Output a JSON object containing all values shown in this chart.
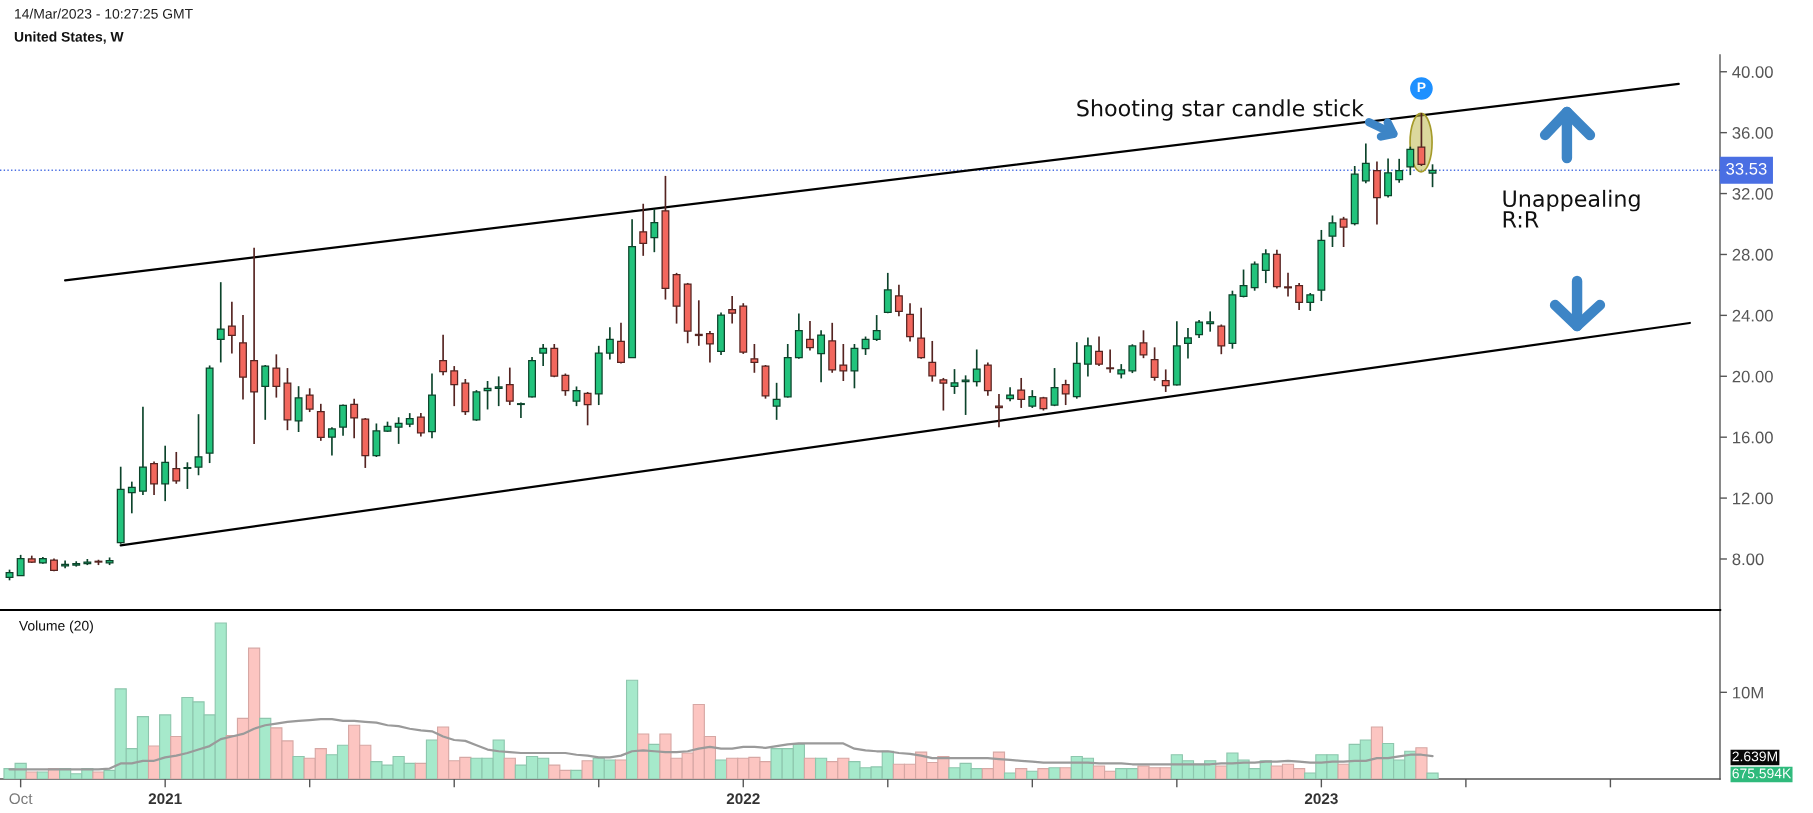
{
  "chart_data": [
    {
      "type": "candlestick",
      "title": "United States, W",
      "annotations": [
        "14/Mar/2023 - 10:27:25 GMT",
        "Unappealing\nR:R",
        "Shooting star candle stick",
        {
          "text": "P",
          "x": "2023-03-06",
          "y": 38.9
        }
      ],
      "x": [
        "2020-09-28",
        "2020-10-05",
        "2020-10-12",
        "2020-10-19",
        "2020-10-26",
        "2020-11-02",
        "2020-11-09",
        "2020-11-16",
        "2020-11-23",
        "2020-11-30",
        "2020-12-07",
        "2020-12-14",
        "2020-12-21",
        "2020-12-28",
        "2021-01-04",
        "2021-01-11",
        "2021-01-18",
        "2021-01-25",
        "2021-02-01",
        "2021-02-08",
        "2021-02-15",
        "2021-02-22",
        "2021-03-01",
        "2021-03-08",
        "2021-03-15",
        "2021-03-22",
        "2021-03-29",
        "2021-04-05",
        "2021-04-12",
        "2021-04-19",
        "2021-04-26",
        "2021-05-03",
        "2021-05-10",
        "2021-05-17",
        "2021-05-24",
        "2021-05-31",
        "2021-06-07",
        "2021-06-14",
        "2021-06-21",
        "2021-06-28",
        "2021-07-05",
        "2021-07-12",
        "2021-07-19",
        "2021-07-26",
        "2021-08-02",
        "2021-08-09",
        "2021-08-16",
        "2021-08-23",
        "2021-08-30",
        "2021-09-06",
        "2021-09-13",
        "2021-09-20",
        "2021-09-27",
        "2021-10-04",
        "2021-10-11",
        "2021-10-18",
        "2021-10-25",
        "2021-11-01",
        "2021-11-08",
        "2021-11-15",
        "2021-11-22",
        "2021-11-29",
        "2021-12-06",
        "2021-12-13",
        "2021-12-20",
        "2021-12-27",
        "2022-01-03",
        "2022-01-10",
        "2022-01-17",
        "2022-01-24",
        "2022-01-31",
        "2022-02-07",
        "2022-02-14",
        "2022-02-21",
        "2022-02-28",
        "2022-03-07",
        "2022-03-14",
        "2022-03-21",
        "2022-03-28",
        "2022-04-04",
        "2022-04-11",
        "2022-04-18",
        "2022-04-25",
        "2022-05-02",
        "2022-05-09",
        "2022-05-16",
        "2022-05-23",
        "2022-05-30",
        "2022-06-06",
        "2022-06-13",
        "2022-06-20",
        "2022-06-27",
        "2022-07-04",
        "2022-07-11",
        "2022-07-18",
        "2022-07-25",
        "2022-08-01",
        "2022-08-08",
        "2022-08-15",
        "2022-08-22",
        "2022-08-29",
        "2022-09-05",
        "2022-09-12",
        "2022-09-19",
        "2022-09-26",
        "2022-10-03",
        "2022-10-10",
        "2022-10-17",
        "2022-10-24",
        "2022-10-31",
        "2022-11-07",
        "2022-11-14",
        "2022-11-21",
        "2022-11-28",
        "2022-12-05",
        "2022-12-12",
        "2022-12-19",
        "2022-12-26",
        "2023-01-02",
        "2023-01-09",
        "2023-01-16",
        "2023-01-23",
        "2023-01-30",
        "2023-02-06",
        "2023-02-13",
        "2023-02-20",
        "2023-02-27",
        "2023-03-06",
        "2023-03-13"
      ],
      "ohlc": [
        [
          6.8,
          7.3,
          6.6,
          7.1
        ],
        [
          6.9,
          8.27,
          6.89,
          8.03
        ],
        [
          8.0,
          8.22,
          7.74,
          7.79
        ],
        [
          7.74,
          8.13,
          7.69,
          8.03
        ],
        [
          7.93,
          8.03,
          7.2,
          7.25
        ],
        [
          7.55,
          7.9,
          7.4,
          7.65
        ],
        [
          7.6,
          7.85,
          7.5,
          7.7
        ],
        [
          7.7,
          8.0,
          7.6,
          7.8
        ],
        [
          7.85,
          7.95,
          7.6,
          7.8
        ],
        [
          7.75,
          8.1,
          7.6,
          7.9
        ],
        [
          9.08,
          14.06,
          9.0,
          12.57
        ],
        [
          12.36,
          13.08,
          11.0,
          12.7
        ],
        [
          12.45,
          18.0,
          12.21,
          14.03
        ],
        [
          14.27,
          14.4,
          12.2,
          12.94
        ],
        [
          12.94,
          15.44,
          11.8,
          14.35
        ],
        [
          13.93,
          15.03,
          12.94,
          13.13
        ],
        [
          13.95,
          14.35,
          12.6,
          14.0
        ],
        [
          14.03,
          17.51,
          13.5,
          14.71
        ],
        [
          14.95,
          20.71,
          14.3,
          20.54
        ],
        [
          22.42,
          26.18,
          20.91,
          23.1
        ],
        [
          23.29,
          24.89,
          21.49,
          22.68
        ],
        [
          22.2,
          24.02,
          18.48,
          19.94
        ],
        [
          21.03,
          28.44,
          15.56,
          18.97
        ],
        [
          19.33,
          20.74,
          17.14,
          20.67
        ],
        [
          20.54,
          21.44,
          18.6,
          19.33
        ],
        [
          19.55,
          20.54,
          16.46,
          17.14
        ],
        [
          17.07,
          19.35,
          16.34,
          18.58
        ],
        [
          18.77,
          19.21,
          17.65,
          17.85
        ],
        [
          17.68,
          18.19,
          15.76,
          15.98
        ],
        [
          16.0,
          16.66,
          14.79,
          16.54
        ],
        [
          16.66,
          18.14,
          16.1,
          18.09
        ],
        [
          18.16,
          18.53,
          15.93,
          17.26
        ],
        [
          17.19,
          17.26,
          13.98,
          14.79
        ],
        [
          14.79,
          16.9,
          14.7,
          16.41
        ],
        [
          16.39,
          17.02,
          16.34,
          16.71
        ],
        [
          16.66,
          17.31,
          15.56,
          16.9
        ],
        [
          16.85,
          17.58,
          16.66,
          17.22
        ],
        [
          17.31,
          17.58,
          16.05,
          16.29
        ],
        [
          16.37,
          20.18,
          15.93,
          18.77
        ],
        [
          21.03,
          22.73,
          20.06,
          20.3
        ],
        [
          20.35,
          20.67,
          18.04,
          19.45
        ],
        [
          19.55,
          19.82,
          17.46,
          17.68
        ],
        [
          17.14,
          19.09,
          17.07,
          18.97
        ],
        [
          19.06,
          19.69,
          17.82,
          19.21
        ],
        [
          19.2,
          19.99,
          18.04,
          19.3
        ],
        [
          19.45,
          20.57,
          18.11,
          18.36
        ],
        [
          18.15,
          18.28,
          17.26,
          18.2
        ],
        [
          18.65,
          21.27,
          18.6,
          21.03
        ],
        [
          21.52,
          22.12,
          20.67,
          21.83
        ],
        [
          21.83,
          22.12,
          19.94,
          20.01
        ],
        [
          20.06,
          20.18,
          18.72,
          19.06
        ],
        [
          18.36,
          19.33,
          18.04,
          19.06
        ],
        [
          18.87,
          18.97,
          16.78,
          18.14
        ],
        [
          18.84,
          22.0,
          18.11,
          21.52
        ],
        [
          21.52,
          23.22,
          21.1,
          22.42
        ],
        [
          22.29,
          23.51,
          20.84,
          20.91
        ],
        [
          21.22,
          30.31,
          21.2,
          28.52
        ],
        [
          29.49,
          31.33,
          27.91,
          28.73
        ],
        [
          29.1,
          30.99,
          28.15,
          30.09
        ],
        [
          30.87,
          33.16,
          25.04,
          25.77
        ],
        [
          26.67,
          26.79,
          23.46,
          24.6
        ],
        [
          26.06,
          26.13,
          22.17,
          22.97
        ],
        [
          22.75,
          24.99,
          22.0,
          22.68
        ],
        [
          22.8,
          22.97,
          20.91,
          22.12
        ],
        [
          21.64,
          24.19,
          21.4,
          24.02
        ],
        [
          24.38,
          25.28,
          23.46,
          24.14
        ],
        [
          24.6,
          24.8,
          21.47,
          21.59
        ],
        [
          21.15,
          22.12,
          20.23,
          20.91
        ],
        [
          20.67,
          20.74,
          18.53,
          18.72
        ],
        [
          18.04,
          19.57,
          17.14,
          18.48
        ],
        [
          18.65,
          22.12,
          18.6,
          21.22
        ],
        [
          21.22,
          24.12,
          21.15,
          23.0
        ],
        [
          22.42,
          23.63,
          21.69,
          21.88
        ],
        [
          21.49,
          23.02,
          19.6,
          22.71
        ],
        [
          22.32,
          23.51,
          20.23,
          20.42
        ],
        [
          20.74,
          22.12,
          19.69,
          20.35
        ],
        [
          20.35,
          22.12,
          19.21,
          21.83
        ],
        [
          21.81,
          22.61,
          21.4,
          22.42
        ],
        [
          22.42,
          24.02,
          22.32,
          23.0
        ],
        [
          24.19,
          26.79,
          24.14,
          25.67
        ],
        [
          25.28,
          26.01,
          23.95,
          24.26
        ],
        [
          24.07,
          24.8,
          22.29,
          22.61
        ],
        [
          22.51,
          24.5,
          21.15,
          21.22
        ],
        [
          20.91,
          22.32,
          19.65,
          20.03
        ],
        [
          19.77,
          19.89,
          17.75,
          19.55
        ],
        [
          19.33,
          20.47,
          18.84,
          19.57
        ],
        [
          19.65,
          20.06,
          17.46,
          19.74
        ],
        [
          19.65,
          21.76,
          19.33,
          20.47
        ],
        [
          20.74,
          20.91,
          18.72,
          19.06
        ],
        [
          18.04,
          18.84,
          16.66,
          17.94
        ],
        [
          18.53,
          19.28,
          18.36,
          18.77
        ],
        [
          19.09,
          19.89,
          17.92,
          18.48
        ],
        [
          18.04,
          19.09,
          17.92,
          18.67
        ],
        [
          18.58,
          18.65,
          17.75,
          17.87
        ],
        [
          18.11,
          20.54,
          18.04,
          19.26
        ],
        [
          19.45,
          19.77,
          18.11,
          18.84
        ],
        [
          18.67,
          22.24,
          18.53,
          20.84
        ],
        [
          20.79,
          22.54,
          19.99,
          22.0
        ],
        [
          21.64,
          22.61,
          20.67,
          20.79
        ],
        [
          20.55,
          21.76,
          20.23,
          20.5
        ],
        [
          20.15,
          20.8,
          19.86,
          20.42
        ],
        [
          20.36,
          22.1,
          20.21,
          21.99
        ],
        [
          22.19,
          23.02,
          21.19,
          21.4
        ],
        [
          21.1,
          21.9,
          19.71,
          19.92
        ],
        [
          19.71,
          20.45,
          18.97,
          19.39
        ],
        [
          19.44,
          23.61,
          19.39,
          21.99
        ],
        [
          22.16,
          23.17,
          21.16,
          22.52
        ],
        [
          22.73,
          23.7,
          22.52,
          23.55
        ],
        [
          23.46,
          24.26,
          22.93,
          23.58
        ],
        [
          23.29,
          23.4,
          21.45,
          21.99
        ],
        [
          22.16,
          25.62,
          21.81,
          25.35
        ],
        [
          25.24,
          27.01,
          25.18,
          25.95
        ],
        [
          25.83,
          27.54,
          25.62,
          27.36
        ],
        [
          26.95,
          28.34,
          26.12,
          28.04
        ],
        [
          28.01,
          28.31,
          25.77,
          25.89
        ],
        [
          25.87,
          26.8,
          25.24,
          25.81
        ],
        [
          25.95,
          26.12,
          24.35,
          24.85
        ],
        [
          24.85,
          25.47,
          24.29,
          25.35
        ],
        [
          25.65,
          29.61,
          24.94,
          28.93
        ],
        [
          29.2,
          30.56,
          28.49,
          30.08
        ],
        [
          30.32,
          30.47,
          28.49,
          29.79
        ],
        [
          30.02,
          33.81,
          29.91,
          33.27
        ],
        [
          32.83,
          35.28,
          32.68,
          33.98
        ],
        [
          33.51,
          34.1,
          29.96,
          31.74
        ],
        [
          31.86,
          34.31,
          31.74,
          33.36
        ],
        [
          32.92,
          34.28,
          32.71,
          33.51
        ],
        [
          33.75,
          35.08,
          33.21,
          34.9
        ],
        [
          35.05,
          37.29,
          33.81,
          33.92
        ],
        [
          33.35,
          33.92,
          32.42,
          33.53
        ]
      ],
      "colors": [
        "#22c37c",
        "#22c37c",
        "#f2675d",
        "#22c37c",
        "#f2675d",
        "#22c37c",
        "#22c37c",
        "#22c37c",
        "#f2675d",
        "#22c37c",
        "#22c37c",
        "#22c37c",
        "#22c37c",
        "#f2675d",
        "#22c37c",
        "#f2675d",
        "#22c37c",
        "#22c37c",
        "#22c37c",
        "#22c37c",
        "#f2675d",
        "#f2675d",
        "#f2675d",
        "#22c37c",
        "#f2675d",
        "#f2675d",
        "#22c37c",
        "#f2675d",
        "#f2675d",
        "#22c37c",
        "#22c37c",
        "#f2675d",
        "#f2675d",
        "#22c37c",
        "#22c37c",
        "#22c37c",
        "#22c37c",
        "#f2675d",
        "#22c37c",
        "#f2675d",
        "#f2675d",
        "#f2675d",
        "#22c37c",
        "#22c37c",
        "#22c37c",
        "#f2675d",
        "#22c37c",
        "#22c37c",
        "#22c37c",
        "#f2675d",
        "#f2675d",
        "#22c37c",
        "#f2675d",
        "#22c37c",
        "#22c37c",
        "#f2675d",
        "#22c37c",
        "#f2675d",
        "#22c37c",
        "#f2675d",
        "#f2675d",
        "#f2675d",
        "#f2675d",
        "#f2675d",
        "#22c37c",
        "#f2675d",
        "#f2675d",
        "#f2675d",
        "#f2675d",
        "#22c37c",
        "#22c37c",
        "#22c37c",
        "#f2675d",
        "#22c37c",
        "#f2675d",
        "#f2675d",
        "#22c37c",
        "#22c37c",
        "#22c37c",
        "#22c37c",
        "#f2675d",
        "#f2675d",
        "#f2675d",
        "#f2675d",
        "#f2675d",
        "#22c37c",
        "#22c37c",
        "#22c37c",
        "#f2675d",
        "#f2675d",
        "#22c37c",
        "#f2675d",
        "#22c37c",
        "#f2675d",
        "#22c37c",
        "#f2675d",
        "#22c37c",
        "#22c37c",
        "#f2675d",
        "#f2675d",
        "#22c37c",
        "#22c37c",
        "#f2675d",
        "#f2675d",
        "#f2675d",
        "#22c37c",
        "#22c37c",
        "#22c37c",
        "#22c37c",
        "#f2675d",
        "#22c37c",
        "#22c37c",
        "#22c37c",
        "#22c37c",
        "#f2675d",
        "#f2675d",
        "#f2675d",
        "#22c37c",
        "#22c37c",
        "#22c37c",
        "#f2675d",
        "#22c37c",
        "#22c37c",
        "#f2675d",
        "#22c37c",
        "#22c37c",
        "#22c37c",
        "#f2675d",
        "#22c37c"
      ],
      "series": [
        {
          "type": "line",
          "x": [
            "2020-11-02",
            "2023-08-15"
          ],
          "values": [
            26.3,
            39.2
          ],
          "color": "#000000"
        },
        {
          "type": "line",
          "x": [
            "2020-12-07",
            "2023-08-22"
          ],
          "values": [
            8.9,
            23.5
          ],
          "color": "#000000"
        }
      ],
      "xlim": [
        "2020-09-22",
        "2023-09-10"
      ],
      "ylim": [
        4.65,
        41.1
      ],
      "yticks": [
        {
          "value": 8,
          "label": "8.00"
        },
        {
          "value": 12,
          "label": "12.00"
        },
        {
          "value": 16,
          "label": "16.00"
        },
        {
          "value": 20,
          "label": "20.00"
        },
        {
          "value": 24,
          "label": "24.00"
        },
        {
          "value": 28,
          "label": "28.00"
        },
        {
          "value": 32,
          "label": "32.00"
        },
        {
          "value": 36,
          "label": "36.00"
        },
        {
          "value": 40,
          "label": "40.00"
        }
      ],
      "ref_lines": [
        {
          "axis": "y",
          "value": 33.53,
          "label": "33.53",
          "color": "#4a6fe3",
          "line_style": "dotted"
        }
      ],
      "tick_labels": "y"
    },
    {
      "type": "bar",
      "title": "Volume (20)",
      "x": [
        "2020-09-28",
        "2020-10-05",
        "2020-10-12",
        "2020-10-19",
        "2020-10-26",
        "2020-11-02",
        "2020-11-09",
        "2020-11-16",
        "2020-11-23",
        "2020-11-30",
        "2020-12-07",
        "2020-12-14",
        "2020-12-21",
        "2020-12-28",
        "2021-01-04",
        "2021-01-11",
        "2021-01-18",
        "2021-01-25",
        "2021-02-01",
        "2021-02-08",
        "2021-02-15",
        "2021-02-22",
        "2021-03-01",
        "2021-03-08",
        "2021-03-15",
        "2021-03-22",
        "2021-03-29",
        "2021-04-05",
        "2021-04-12",
        "2021-04-19",
        "2021-04-26",
        "2021-05-03",
        "2021-05-10",
        "2021-05-17",
        "2021-05-24",
        "2021-05-31",
        "2021-06-07",
        "2021-06-14",
        "2021-06-21",
        "2021-06-28",
        "2021-07-05",
        "2021-07-12",
        "2021-07-19",
        "2021-07-26",
        "2021-08-02",
        "2021-08-09",
        "2021-08-16",
        "2021-08-23",
        "2021-08-30",
        "2021-09-06",
        "2021-09-13",
        "2021-09-20",
        "2021-09-27",
        "2021-10-04",
        "2021-10-11",
        "2021-10-18",
        "2021-10-25",
        "2021-11-01",
        "2021-11-08",
        "2021-11-15",
        "2021-11-22",
        "2021-11-29",
        "2021-12-06",
        "2021-12-13",
        "2021-12-20",
        "2021-12-27",
        "2022-01-03",
        "2022-01-10",
        "2022-01-17",
        "2022-01-24",
        "2022-01-31",
        "2022-02-07",
        "2022-02-14",
        "2022-02-21",
        "2022-02-28",
        "2022-03-07",
        "2022-03-14",
        "2022-03-21",
        "2022-03-28",
        "2022-04-04",
        "2022-04-11",
        "2022-04-18",
        "2022-04-25",
        "2022-05-02",
        "2022-05-09",
        "2022-05-16",
        "2022-05-23",
        "2022-05-30",
        "2022-06-06",
        "2022-06-13",
        "2022-06-20",
        "2022-06-27",
        "2022-07-04",
        "2022-07-11",
        "2022-07-18",
        "2022-07-25",
        "2022-08-01",
        "2022-08-08",
        "2022-08-15",
        "2022-08-22",
        "2022-08-29",
        "2022-09-05",
        "2022-09-12",
        "2022-09-19",
        "2022-09-26",
        "2022-10-03",
        "2022-10-10",
        "2022-10-17",
        "2022-10-24",
        "2022-10-31",
        "2022-11-07",
        "2022-11-14",
        "2022-11-21",
        "2022-11-28",
        "2022-12-05",
        "2022-12-12",
        "2022-12-19",
        "2022-12-26",
        "2023-01-02",
        "2023-01-09",
        "2023-01-16",
        "2023-01-23",
        "2023-01-30",
        "2023-02-06",
        "2023-02-13",
        "2023-02-20",
        "2023-02-27",
        "2023-03-06",
        "2023-03-13"
      ],
      "series": [
        {
          "type": "bar",
          "values": [
            1200000,
            1800000,
            800000,
            800000,
            1200000,
            1200000,
            600000,
            1200000,
            800000,
            1000000,
            10400000,
            3500000,
            7200000,
            3800000,
            7400000,
            4900000,
            9400000,
            8900000,
            7400000,
            18000000,
            5000000,
            7000000,
            15100000,
            7000000,
            5900000,
            4400000,
            2600000,
            2400000,
            3500000,
            2800000,
            3900000,
            6200000,
            3900000,
            2000000,
            1600000,
            2600000,
            1800000,
            1800000,
            4500000,
            6000000,
            2100000,
            2500000,
            2400000,
            2400000,
            4500000,
            2400000,
            1600000,
            2600000,
            2400000,
            1600000,
            1000000,
            1000000,
            2100000,
            2400000,
            2200000,
            2200000,
            11400000,
            5200000,
            4000000,
            5200000,
            2400000,
            3000000,
            8600000,
            4900000,
            2200000,
            2400000,
            2400000,
            2500000,
            2000000,
            3500000,
            3500000,
            4000000,
            2400000,
            2400000,
            2000000,
            2400000,
            2000000,
            1300000,
            1400000,
            3200000,
            1700000,
            1700000,
            3100000,
            1900000,
            2600000,
            1300000,
            1800000,
            1200000,
            1200000,
            3100000,
            700000,
            1200000,
            900000,
            1200000,
            1300000,
            1300000,
            2600000,
            2400000,
            1500000,
            900000,
            1200000,
            1200000,
            1500000,
            1300000,
            1300000,
            2800000,
            2100000,
            1700000,
            2100000,
            1500000,
            3000000,
            2200000,
            1200000,
            2100000,
            1500000,
            1700000,
            1200000,
            700000,
            2800000,
            2800000,
            1700000,
            4000000,
            4500000,
            6000000,
            4100000,
            2200000,
            3200000,
            3600000,
            675594
          ],
          "colors": [
            "#a6e9cb",
            "#a6e9cb",
            "#fcc5c1",
            "#a6e9cb",
            "#fcc5c1",
            "#a6e9cb",
            "#a6e9cb",
            "#a6e9cb",
            "#fcc5c1",
            "#a6e9cb",
            "#a6e9cb",
            "#a6e9cb",
            "#a6e9cb",
            "#fcc5c1",
            "#a6e9cb",
            "#fcc5c1",
            "#a6e9cb",
            "#a6e9cb",
            "#a6e9cb",
            "#a6e9cb",
            "#fcc5c1",
            "#fcc5c1",
            "#fcc5c1",
            "#a6e9cb",
            "#fcc5c1",
            "#fcc5c1",
            "#a6e9cb",
            "#fcc5c1",
            "#fcc5c1",
            "#a6e9cb",
            "#a6e9cb",
            "#fcc5c1",
            "#fcc5c1",
            "#a6e9cb",
            "#a6e9cb",
            "#a6e9cb",
            "#a6e9cb",
            "#fcc5c1",
            "#a6e9cb",
            "#fcc5c1",
            "#fcc5c1",
            "#fcc5c1",
            "#a6e9cb",
            "#a6e9cb",
            "#a6e9cb",
            "#fcc5c1",
            "#a6e9cb",
            "#a6e9cb",
            "#a6e9cb",
            "#fcc5c1",
            "#fcc5c1",
            "#a6e9cb",
            "#fcc5c1",
            "#a6e9cb",
            "#a6e9cb",
            "#fcc5c1",
            "#a6e9cb",
            "#fcc5c1",
            "#a6e9cb",
            "#fcc5c1",
            "#fcc5c1",
            "#fcc5c1",
            "#fcc5c1",
            "#fcc5c1",
            "#a6e9cb",
            "#fcc5c1",
            "#fcc5c1",
            "#fcc5c1",
            "#fcc5c1",
            "#a6e9cb",
            "#a6e9cb",
            "#a6e9cb",
            "#fcc5c1",
            "#a6e9cb",
            "#fcc5c1",
            "#fcc5c1",
            "#a6e9cb",
            "#a6e9cb",
            "#a6e9cb",
            "#a6e9cb",
            "#fcc5c1",
            "#fcc5c1",
            "#fcc5c1",
            "#fcc5c1",
            "#fcc5c1",
            "#a6e9cb",
            "#a6e9cb",
            "#a6e9cb",
            "#fcc5c1",
            "#fcc5c1",
            "#a6e9cb",
            "#fcc5c1",
            "#a6e9cb",
            "#fcc5c1",
            "#a6e9cb",
            "#fcc5c1",
            "#a6e9cb",
            "#a6e9cb",
            "#fcc5c1",
            "#fcc5c1",
            "#a6e9cb",
            "#a6e9cb",
            "#fcc5c1",
            "#fcc5c1",
            "#fcc5c1",
            "#a6e9cb",
            "#a6e9cb",
            "#a6e9cb",
            "#a6e9cb",
            "#fcc5c1",
            "#a6e9cb",
            "#a6e9cb",
            "#a6e9cb",
            "#a6e9cb",
            "#fcc5c1",
            "#fcc5c1",
            "#fcc5c1",
            "#a6e9cb",
            "#a6e9cb",
            "#a6e9cb",
            "#fcc5c1",
            "#a6e9cb",
            "#a6e9cb",
            "#fcc5c1",
            "#a6e9cb",
            "#a6e9cb",
            "#a6e9cb",
            "#fcc5c1",
            "#a6e9cb"
          ]
        },
        {
          "type": "line",
          "color": "#9a9a9a",
          "values": [
            1100000,
            1100000,
            1100000,
            1100000,
            1100000,
            1100000,
            1100000,
            1100000,
            1100000,
            1200000,
            1800000,
            1800000,
            2100000,
            2100000,
            2500000,
            2700000,
            3000000,
            3400000,
            3800000,
            4600000,
            4900000,
            5200000,
            5800000,
            6200000,
            6400000,
            6600000,
            6700000,
            6800000,
            6900000,
            6900000,
            6700000,
            6700000,
            6600000,
            6500000,
            6200000,
            6100000,
            5800000,
            5600000,
            5500000,
            4900000,
            4500000,
            4400000,
            3900000,
            3400000,
            3200000,
            3100000,
            3000000,
            3000000,
            3000000,
            3000000,
            3000000,
            2800000,
            2700000,
            2500000,
            2500000,
            2700000,
            3200000,
            3300000,
            3200000,
            3100000,
            3100000,
            3200000,
            3500000,
            3700000,
            3500000,
            3500000,
            3700000,
            3700000,
            3600000,
            3800000,
            4000000,
            4100000,
            4100000,
            4100000,
            4100000,
            4100000,
            3500000,
            3300000,
            3200000,
            3200000,
            3000000,
            2900000,
            2700000,
            2400000,
            2400000,
            2400000,
            2400000,
            2400000,
            2400000,
            2300000,
            2200000,
            2100000,
            2000000,
            1900000,
            1900000,
            1900000,
            1900000,
            1900000,
            1800000,
            1800000,
            1800000,
            1700000,
            1700000,
            1700000,
            1700000,
            1700000,
            1700000,
            1700000,
            1700000,
            1800000,
            1800000,
            1900000,
            1900000,
            2000000,
            2000000,
            2100000,
            2000000,
            1900000,
            1900000,
            2000000,
            2000000,
            2100000,
            2100000,
            2400000,
            2400000,
            2600000,
            2800000,
            2800000,
            2639000
          ]
        }
      ],
      "xlim": [
        "2020-09-22",
        "2023-09-10"
      ],
      "xticks": [
        {
          "value": "2020-10-05",
          "label": "Oct"
        },
        {
          "value": "2021-01-04",
          "label": "2021"
        },
        {
          "value": "2021-04-05",
          "label": null
        },
        {
          "value": "2021-07-05",
          "label": null
        },
        {
          "value": "2021-10-04",
          "label": null
        },
        {
          "value": "2022-01-03",
          "label": "2022"
        },
        {
          "value": "2022-04-04",
          "label": null
        },
        {
          "value": "2022-07-04",
          "label": null
        },
        {
          "value": "2022-10-03",
          "label": null
        },
        {
          "value": "2023-01-02",
          "label": "2023"
        },
        {
          "value": "2023-04-03",
          "label": null
        },
        {
          "value": "2023-07-03",
          "label": null
        }
      ],
      "ylim": [
        0,
        19500000
      ],
      "yticks": [
        {
          "value": 10000000,
          "label": "10M"
        },
        {
          "value": 2639000,
          "label": "2.639M"
        },
        {
          "value": 675594,
          "label": "675.594K"
        }
      ]
    }
  ]
}
